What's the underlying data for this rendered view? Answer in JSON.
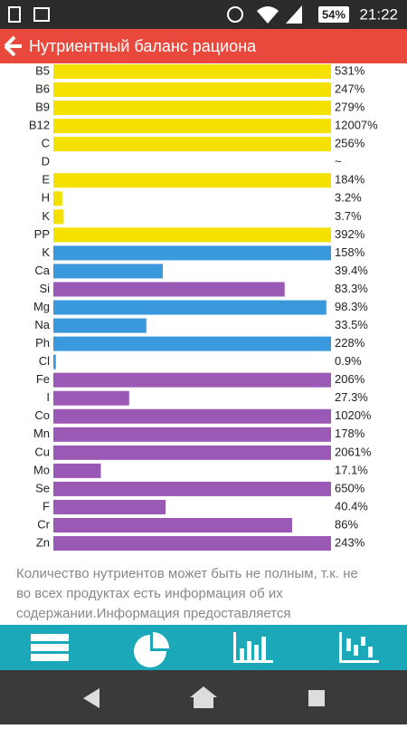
{
  "status_bar": {
    "battery": "54%",
    "time": "21:22"
  },
  "app_bar": {
    "title": "Нутриентный баланс рациона"
  },
  "chart": {
    "type": "bar",
    "xlim": [
      0,
      100
    ],
    "categories": [
      "B5",
      "B6",
      "B9",
      "B12",
      "C",
      "D",
      "E",
      "H",
      "K",
      "PP",
      "K",
      "Ca",
      "Si",
      "Mg",
      "Na",
      "Ph",
      "Cl",
      "Fe",
      "I",
      "Co",
      "Mn",
      "Cu",
      "Mo",
      "Se",
      "F",
      "Cr",
      "Zn"
    ],
    "values": [
      531,
      247,
      279,
      12007,
      256,
      null,
      184,
      3.2,
      3.7,
      392,
      158,
      39.4,
      83.3,
      98.3,
      33.5,
      228,
      0.9,
      206,
      27.3,
      1020,
      178,
      2061,
      17.1,
      650,
      40.4,
      86,
      243
    ],
    "value_labels": [
      "531%",
      "247%",
      "279%",
      "12007%",
      "256%",
      "~",
      "184%",
      "3.2%",
      "3.7%",
      "392%",
      "158%",
      "39.4%",
      "83.3%",
      "98.3%",
      "33.5%",
      "228%",
      "0.9%",
      "206%",
      "27.3%",
      "1020%",
      "178%",
      "2061%",
      "17.1%",
      "650%",
      "40.4%",
      "86%",
      "243%"
    ],
    "colors": [
      "#f4e100",
      "#f4e100",
      "#f4e100",
      "#f4e100",
      "#f4e100",
      "#f4e100",
      "#f4e100",
      "#f4e100",
      "#f4e100",
      "#f4e100",
      "#3a99dc",
      "#3a99dc",
      "#9b59b6",
      "#3a99dc",
      "#3a99dc",
      "#3a99dc",
      "#3a99dc",
      "#9b59b6",
      "#9b59b6",
      "#9b59b6",
      "#9b59b6",
      "#9b59b6",
      "#9b59b6",
      "#9b59b6",
      "#9b59b6",
      "#9b59b6",
      "#9b59b6"
    ]
  },
  "note": [
    "Количество нутриентов может быть не полным, т.к. не",
    "во всех продуктах есть информация об их",
    "содержании.Информация предоставляется"
  ]
}
